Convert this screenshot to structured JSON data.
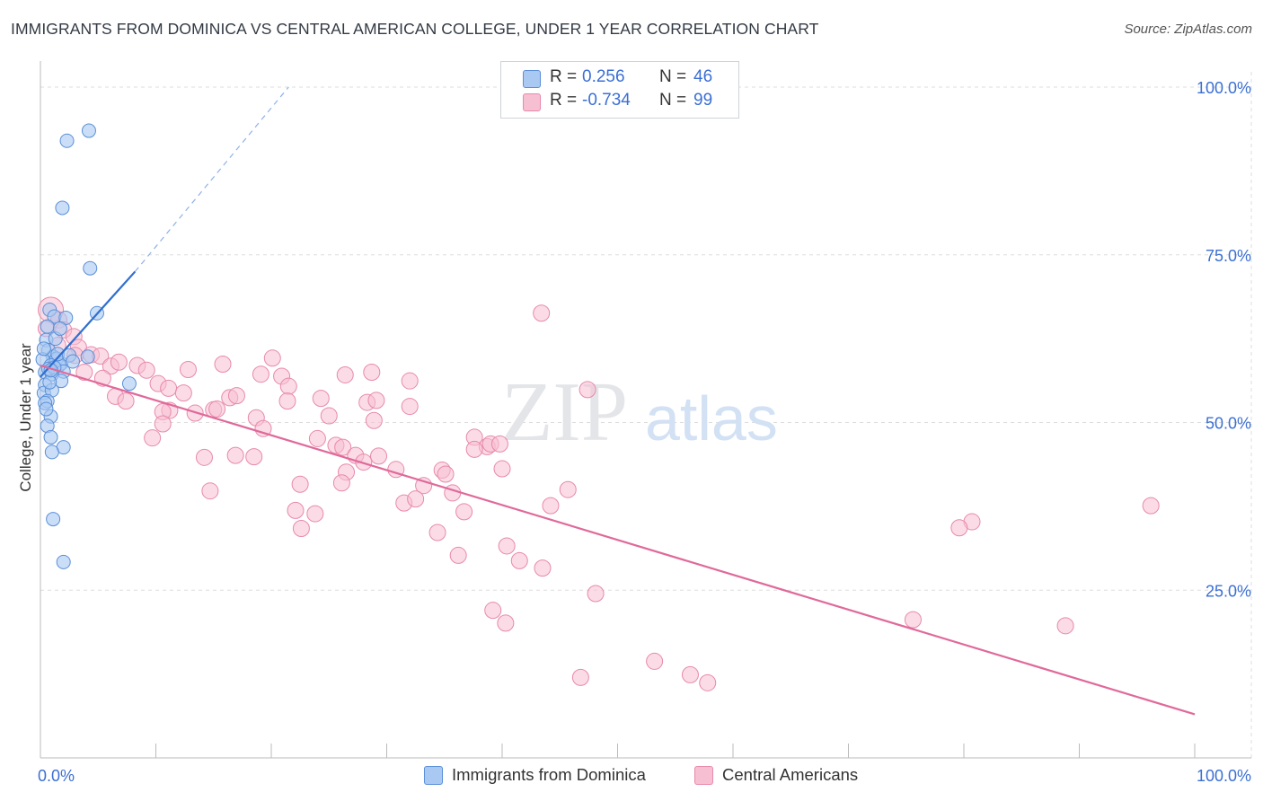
{
  "title": "IMMIGRANTS FROM DOMINICA VS CENTRAL AMERICAN COLLEGE, UNDER 1 YEAR CORRELATION CHART",
  "source": "Source: ZipAtlas.com",
  "watermark": {
    "zip": "ZIP",
    "atlas": "atlas"
  },
  "colors": {
    "blue_fill": "#a9c8f2",
    "blue_stroke": "#5a8fd8",
    "blue_line": "#2f6fd0",
    "pink_fill": "#f7bfd2",
    "pink_stroke": "#e889ab",
    "pink_line": "#e0699a",
    "axis_label": "#3b6fd4",
    "grid": "#dddddd"
  },
  "legend": {
    "rows": [
      {
        "r_label": "R =",
        "r_value": "0.256",
        "n_label": "N =",
        "n_value": "46",
        "color": "#a9c8f2",
        "stroke": "#5a8fd8"
      },
      {
        "r_label": "R =",
        "r_value": "-0.734",
        "n_label": "N =",
        "n_value": "99",
        "color": "#f7bfd2",
        "stroke": "#e889ab"
      }
    ]
  },
  "bottom_legend": [
    {
      "label": "Immigrants from Dominica",
      "color": "#a9c8f2",
      "stroke": "#5a8fd8"
    },
    {
      "label": "Central Americans",
      "color": "#f7bfd2",
      "stroke": "#e889ab"
    }
  ],
  "chart_data": {
    "type": "scatter",
    "title": "IMMIGRANTS FROM DOMINICA VS CENTRAL AMERICAN COLLEGE, UNDER 1 YEAR CORRELATION CHART",
    "xlabel": "",
    "ylabel": "College, Under 1 year",
    "xlim": [
      0,
      100
    ],
    "ylim": [
      0,
      100
    ],
    "x_tick_labels": [
      "0.0%",
      "100.0%"
    ],
    "y_tick_labels": [
      "100.0%",
      "75.0%",
      "50.0%",
      "25.0%"
    ],
    "y_ticks": [
      100,
      75,
      50,
      25
    ],
    "grid": true,
    "legend_position": "top-center",
    "series": [
      {
        "name": "Immigrants from Dominica",
        "points": [
          [
            4.2,
            93.5
          ],
          [
            2.3,
            92.0
          ],
          [
            1.9,
            82.0
          ],
          [
            4.3,
            73.0
          ],
          [
            0.8,
            66.8
          ],
          [
            1.2,
            65.8
          ],
          [
            4.9,
            66.3
          ],
          [
            2.2,
            65.6
          ],
          [
            0.6,
            64.3
          ],
          [
            0.5,
            62.3
          ],
          [
            0.7,
            60.8
          ],
          [
            1.1,
            59.8
          ],
          [
            1.4,
            59.5
          ],
          [
            4.1,
            59.8
          ],
          [
            0.2,
            59.4
          ],
          [
            0.9,
            58.5
          ],
          [
            1.6,
            58.5
          ],
          [
            1.8,
            58.8
          ],
          [
            0.4,
            57.5
          ],
          [
            2.0,
            57.6
          ],
          [
            1.0,
            57.2
          ],
          [
            1.8,
            56.2
          ],
          [
            7.7,
            55.8
          ],
          [
            0.4,
            55.6
          ],
          [
            0.3,
            54.4
          ],
          [
            1.0,
            54.8
          ],
          [
            0.6,
            53.2
          ],
          [
            0.4,
            52.9
          ],
          [
            0.9,
            50.9
          ],
          [
            0.6,
            49.5
          ],
          [
            0.9,
            47.8
          ],
          [
            2.0,
            46.3
          ],
          [
            1.0,
            45.6
          ],
          [
            1.1,
            35.6
          ],
          [
            2.0,
            29.2
          ],
          [
            0.7,
            58.0
          ],
          [
            1.5,
            60.2
          ],
          [
            0.3,
            61.0
          ],
          [
            2.5,
            60.0
          ],
          [
            1.3,
            62.5
          ],
          [
            0.8,
            56.0
          ],
          [
            1.7,
            64.0
          ],
          [
            0.5,
            52.0
          ],
          [
            1.2,
            58.2
          ],
          [
            2.8,
            59.1
          ],
          [
            0.9,
            57.8
          ]
        ],
        "trend": {
          "x": [
            0.0,
            8.2
          ],
          "y": [
            56.8,
            72.5
          ],
          "dashed_extension_to": [
            21.5,
            100.0
          ]
        }
      },
      {
        "name": "Central Americans",
        "points": [
          [
            0.9,
            66.8
          ],
          [
            1.6,
            65.3
          ],
          [
            2.0,
            63.8
          ],
          [
            2.9,
            62.8
          ],
          [
            3.3,
            61.2
          ],
          [
            4.4,
            60.1
          ],
          [
            3.0,
            60.0
          ],
          [
            5.2,
            59.9
          ],
          [
            6.1,
            58.4
          ],
          [
            8.4,
            58.5
          ],
          [
            3.8,
            57.5
          ],
          [
            9.2,
            57.8
          ],
          [
            12.8,
            57.9
          ],
          [
            15.8,
            58.7
          ],
          [
            20.1,
            59.6
          ],
          [
            5.4,
            56.6
          ],
          [
            10.2,
            55.8
          ],
          [
            11.1,
            55.1
          ],
          [
            19.1,
            57.2
          ],
          [
            20.9,
            56.9
          ],
          [
            26.4,
            57.1
          ],
          [
            28.7,
            57.5
          ],
          [
            32.0,
            56.2
          ],
          [
            21.5,
            55.4
          ],
          [
            12.4,
            54.4
          ],
          [
            6.5,
            53.9
          ],
          [
            7.4,
            53.2
          ],
          [
            16.4,
            53.7
          ],
          [
            17.0,
            54.0
          ],
          [
            21.4,
            53.2
          ],
          [
            24.3,
            53.6
          ],
          [
            28.3,
            53.0
          ],
          [
            29.1,
            53.3
          ],
          [
            11.2,
            51.8
          ],
          [
            10.6,
            51.6
          ],
          [
            13.4,
            51.4
          ],
          [
            15.0,
            51.9
          ],
          [
            18.7,
            50.7
          ],
          [
            25.0,
            51.0
          ],
          [
            28.9,
            50.3
          ],
          [
            10.6,
            49.8
          ],
          [
            19.3,
            49.1
          ],
          [
            32.0,
            52.4
          ],
          [
            9.7,
            47.7
          ],
          [
            24.0,
            47.6
          ],
          [
            25.6,
            46.6
          ],
          [
            26.2,
            46.3
          ],
          [
            27.3,
            45.1
          ],
          [
            29.3,
            45.0
          ],
          [
            37.6,
            47.8
          ],
          [
            38.7,
            46.4
          ],
          [
            37.6,
            46.0
          ],
          [
            39.0,
            46.8
          ],
          [
            39.8,
            46.8
          ],
          [
            14.2,
            44.8
          ],
          [
            16.9,
            45.1
          ],
          [
            18.5,
            44.9
          ],
          [
            28.0,
            44.1
          ],
          [
            30.8,
            43.0
          ],
          [
            26.5,
            42.6
          ],
          [
            34.8,
            42.9
          ],
          [
            35.1,
            42.3
          ],
          [
            40.0,
            43.1
          ],
          [
            22.5,
            40.8
          ],
          [
            26.1,
            41.0
          ],
          [
            33.2,
            40.6
          ],
          [
            14.7,
            39.8
          ],
          [
            35.7,
            39.5
          ],
          [
            31.5,
            38.0
          ],
          [
            32.5,
            38.6
          ],
          [
            45.7,
            40.0
          ],
          [
            44.2,
            37.6
          ],
          [
            22.1,
            36.9
          ],
          [
            23.8,
            36.4
          ],
          [
            36.7,
            36.7
          ],
          [
            22.6,
            34.2
          ],
          [
            34.4,
            33.6
          ],
          [
            80.7,
            35.2
          ],
          [
            79.6,
            34.3
          ],
          [
            96.2,
            37.6
          ],
          [
            40.4,
            31.6
          ],
          [
            36.2,
            30.2
          ],
          [
            41.5,
            29.4
          ],
          [
            43.5,
            28.3
          ],
          [
            48.1,
            24.5
          ],
          [
            39.2,
            22.0
          ],
          [
            40.3,
            20.1
          ],
          [
            75.6,
            20.6
          ],
          [
            88.8,
            19.7
          ],
          [
            53.2,
            14.4
          ],
          [
            46.8,
            12.0
          ],
          [
            56.3,
            12.4
          ],
          [
            57.8,
            11.2
          ],
          [
            43.4,
            66.3
          ],
          [
            0.5,
            64.0
          ],
          [
            47.4,
            54.9
          ],
          [
            6.8,
            59.0
          ],
          [
            15.3,
            52.0
          ],
          [
            1.5,
            61.5
          ]
        ],
        "trend": {
          "x": [
            0.0,
            100.0
          ],
          "y": [
            58.5,
            6.5
          ]
        }
      }
    ]
  }
}
